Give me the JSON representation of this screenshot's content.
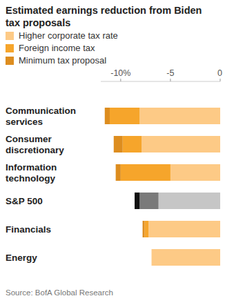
{
  "chart_data": {
    "type": "bar",
    "orientation": "horizontal",
    "stacked": true,
    "grid": false,
    "data_labels": false,
    "title": "Estimated earnings reduction from Biden tax proposals",
    "source": "Source: BofA Global Research",
    "categories": [
      "Communication services",
      "Consumer discretionary",
      "Information technology",
      "S&P 500",
      "Financials",
      "Energy"
    ],
    "xlim": [
      -12,
      0
    ],
    "xticks": [
      {
        "value": -10,
        "label": "-10%"
      },
      -5,
      0
    ],
    "series": [
      {
        "name": "Higher corporate tax rate",
        "color": "#fdca86",
        "colors": [
          "#fdca86",
          "#fdca86",
          "#fdca86",
          "#c6c6c6",
          "#fdca86",
          "#fdca86"
        ],
        "values": [
          -8.1,
          -7.9,
          -5.0,
          -6.2,
          -7.2,
          -6.9
        ]
      },
      {
        "name": "Foreign income tax",
        "color": "#f6a52b",
        "colors": [
          "#f6a52b",
          "#f6a52b",
          "#f6a52b",
          "#7a7a7a",
          "#f6a52b",
          "#f6a52b"
        ],
        "values": [
          -3.0,
          -1.9,
          -5.0,
          -1.9,
          -0.4,
          0
        ]
      },
      {
        "name": "Minimum tax proposal",
        "color": "#dd8d1f",
        "colors": [
          "#dd8d1f",
          "#dd8d1f",
          "#dd8d1f",
          "#111111",
          "#dd8d1f",
          "#dd8d1f"
        ],
        "values": [
          -0.5,
          -0.9,
          -0.5,
          -0.5,
          -0.2,
          0
        ]
      }
    ]
  }
}
